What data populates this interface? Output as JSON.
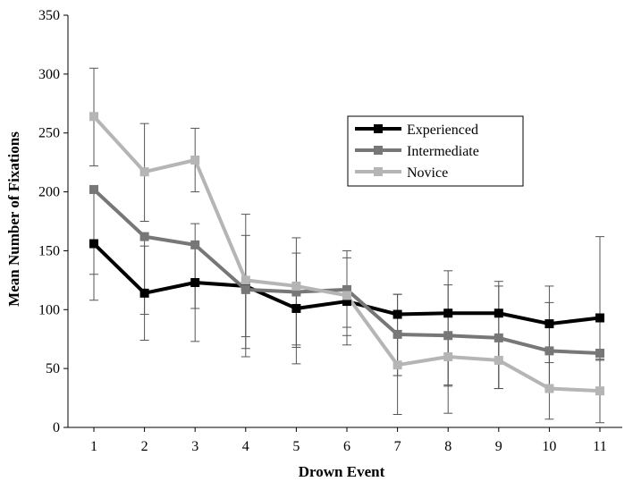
{
  "chart_data": {
    "type": "line",
    "title": "",
    "xlabel": "Drown Event",
    "ylabel": "Mean Number of Fixations",
    "x": [
      1,
      2,
      3,
      4,
      5,
      6,
      7,
      8,
      9,
      10,
      11
    ],
    "ylim": [
      0,
      350
    ],
    "yticks": [
      0,
      50,
      100,
      150,
      200,
      250,
      300,
      350
    ],
    "grid": false,
    "legend_position": "top-right",
    "series": [
      {
        "name": "Experienced",
        "color": "#000000",
        "values": [
          156,
          114,
          123,
          120,
          101,
          107,
          96,
          97,
          97,
          88,
          93
        ],
        "error_low": [
          108,
          74,
          73,
          77,
          54,
          70,
          44,
          36,
          33,
          55,
          57
        ],
        "error_high": [
          204,
          154,
          173,
          163,
          148,
          144,
          113,
          121,
          124,
          120,
          162
        ]
      },
      {
        "name": "Intermediate",
        "color": "#777777",
        "values": [
          202,
          162,
          155,
          117,
          115,
          117,
          79,
          78,
          76,
          65,
          63
        ],
        "error_low": [
          130,
          96,
          101,
          60,
          68,
          85,
          44,
          35,
          33,
          33,
          30
        ]
      },
      {
        "name": "Novice",
        "color": "#b5b5b5",
        "values": [
          264,
          217,
          227,
          125,
          120,
          112,
          53,
          60,
          57,
          33,
          31
        ],
        "error_low": [
          222,
          175,
          200,
          67,
          70,
          78,
          11,
          12,
          33,
          7,
          4
        ],
        "error_high": [
          305,
          258,
          254,
          181,
          161,
          150,
          113,
          133,
          120,
          106,
          58
        ]
      }
    ]
  }
}
